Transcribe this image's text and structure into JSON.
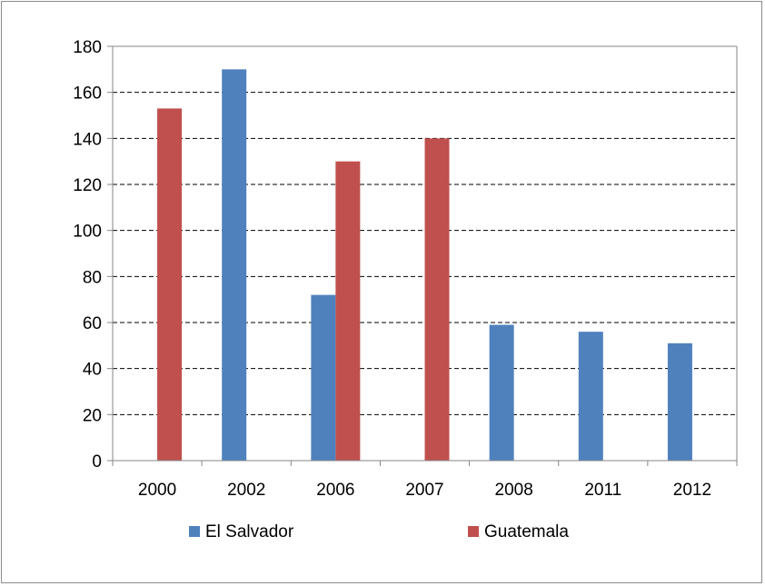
{
  "chart_data": {
    "type": "bar",
    "categories": [
      "2000",
      "2002",
      "2006",
      "2007",
      "2008",
      "2011",
      "2012"
    ],
    "series": [
      {
        "name": "El Salvador",
        "color": "#4f81bd",
        "values": [
          null,
          170,
          72,
          null,
          59,
          56,
          51
        ]
      },
      {
        "name": "Guatemala",
        "color": "#c0504d",
        "values": [
          153,
          null,
          130,
          140,
          null,
          null,
          null
        ]
      }
    ],
    "ylim": [
      0,
      180
    ],
    "yticks": [
      0,
      20,
      40,
      60,
      80,
      100,
      120,
      140,
      160,
      180
    ],
    "grid": "horizontal dashed",
    "legend_position": "bottom"
  }
}
